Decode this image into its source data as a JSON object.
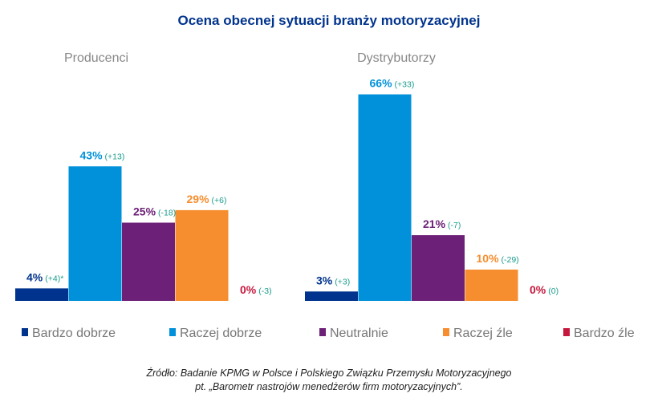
{
  "chart_data": {
    "type": "bar",
    "title": "Ocena obecnej sytuacji branży motoryzacyjnej",
    "categories": [
      "Bardzo dobrze",
      "Raczej dobrze",
      "Neutralnie",
      "Raczej źle",
      "Bardzo źle"
    ],
    "colors": [
      "#00338D",
      "#0091DA",
      "#6D2077",
      "#F68D2E",
      "#C6183E"
    ],
    "delta_color": "#1A9C8C",
    "unit": "%",
    "groups": [
      {
        "name": "Producenci",
        "values": [
          4,
          43,
          25,
          29,
          0
        ],
        "deltas": [
          "(+4)*",
          "(+13)",
          "(-18)",
          "(+6)",
          "(-3)"
        ]
      },
      {
        "name": "Dystrybutorzy",
        "values": [
          3,
          66,
          21,
          10,
          0
        ],
        "deltas": [
          "(+3)",
          "(+33)",
          "(-7)",
          "(-29)",
          "(0)"
        ]
      }
    ],
    "legend_position": "bottom"
  },
  "source": {
    "line1": "Źródło: Badanie KPMG w Polsce i Polskiego Związku Przemysłu Motoryzacyjnego",
    "line2": "pt. „Barometr nastrojów menedżerów firm motoryzacyjnych”."
  }
}
